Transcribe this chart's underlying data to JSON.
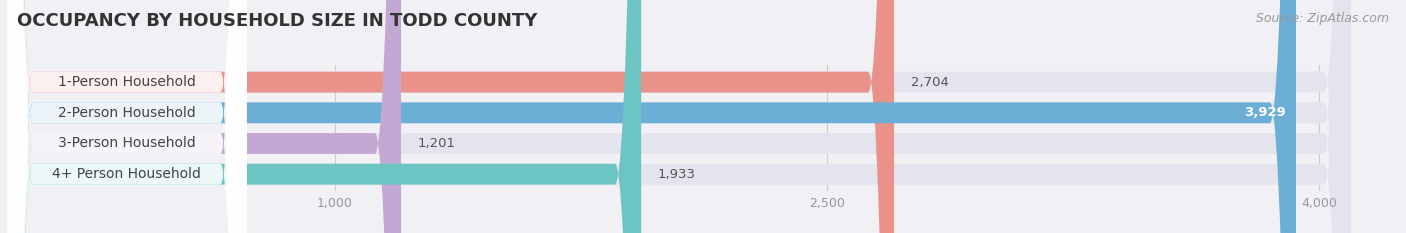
{
  "title": "OCCUPANCY BY HOUSEHOLD SIZE IN TODD COUNTY",
  "source": "Source: ZipAtlas.com",
  "categories": [
    "1-Person Household",
    "2-Person Household",
    "3-Person Household",
    "4+ Person Household"
  ],
  "values": [
    2704,
    3929,
    1201,
    1933
  ],
  "bar_colors": [
    "#e8928a",
    "#6baed6",
    "#c4a8d4",
    "#6cc5c2"
  ],
  "value_colors": [
    "#555555",
    "#ffffff",
    "#555555",
    "#555555"
  ],
  "xlim_max": 4200,
  "xticks": [
    1000,
    2500,
    4000
  ],
  "background_color": "#f0f0f5",
  "bar_background": "#e4e4ee",
  "title_fontsize": 13,
  "source_fontsize": 9,
  "label_fontsize": 10,
  "value_fontsize": 9.5,
  "bar_height": 0.68,
  "figsize": [
    14.06,
    2.33
  ],
  "dpi": 100
}
